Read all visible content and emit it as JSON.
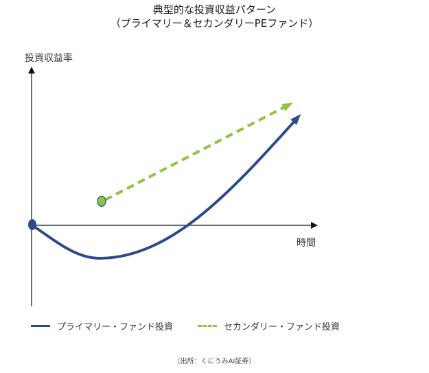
{
  "chart_data": {
    "type": "line",
    "title": "典型的な投資収益パターン",
    "subtitle": "（プライマリー＆セカンダリーPEファンド）",
    "ylabel": "投資収益率",
    "xlabel": "時間",
    "grid": false,
    "legend_position": "bottom",
    "source": "（出所：くにうみAI証券）",
    "series": [
      {
        "name": "プライマリー・ファンド投資",
        "style": "solid",
        "color": "#2e4a87"
      },
      {
        "name": "セカンダリー・ファンド投資",
        "style": "dashed",
        "color": "#8cc63f"
      }
    ]
  }
}
